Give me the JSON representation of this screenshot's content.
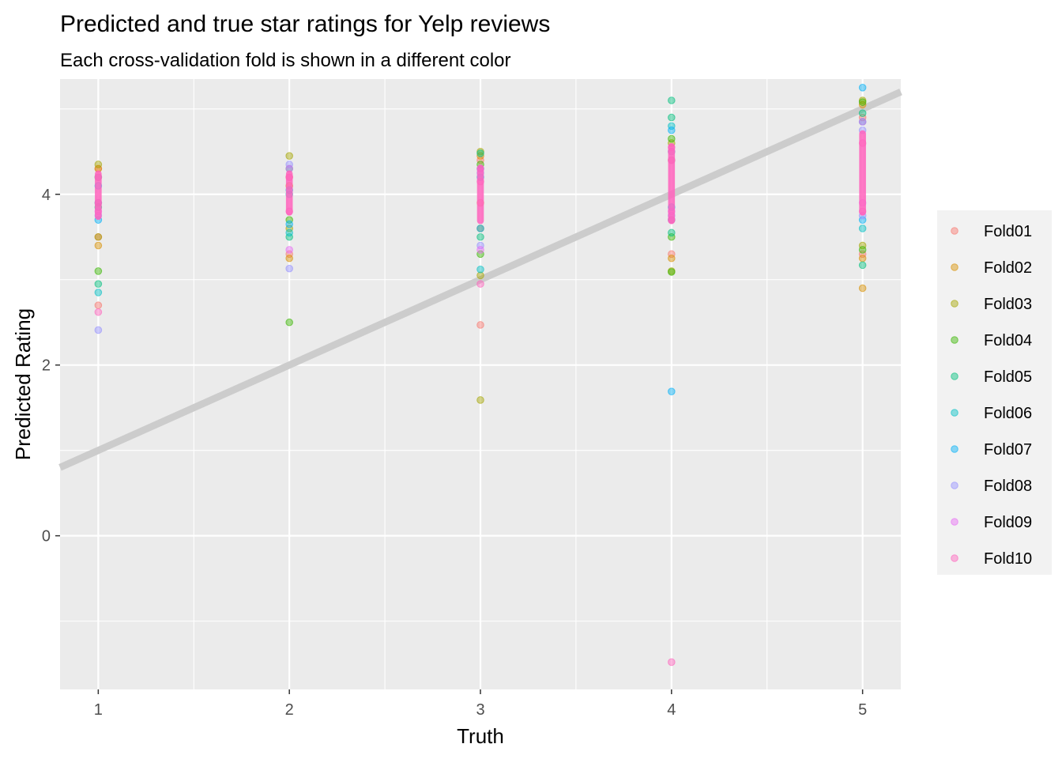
{
  "chart_data": {
    "type": "scatter",
    "title": "Predicted and true star ratings for Yelp reviews",
    "subtitle": "Each cross-validation fold is shown in a different color",
    "xlabel": "Truth",
    "ylabel": "Predicted Rating",
    "xlim": [
      0.8,
      5.2
    ],
    "ylim": [
      -1.8,
      5.35
    ],
    "x_ticks": [
      1,
      2,
      3,
      4,
      5
    ],
    "x_tick_labels": [
      "1",
      "2",
      "3",
      "4",
      "5"
    ],
    "y_ticks": [
      0,
      2,
      4
    ],
    "y_tick_labels": [
      "0",
      "2",
      "4"
    ],
    "grid": true,
    "reference_line": {
      "slope": 1,
      "intercept": 0,
      "color": "#cccccc"
    },
    "legend_position": "right",
    "series": [
      {
        "name": "Fold01",
        "color": "#F8766D",
        "points": [
          [
            1,
            2.7
          ],
          [
            1,
            3.5
          ],
          [
            1,
            4.3
          ],
          [
            2,
            3.3
          ],
          [
            2,
            4.2
          ],
          [
            3,
            2.47
          ],
          [
            3,
            3.9
          ],
          [
            3,
            4.4
          ],
          [
            4,
            3.3
          ],
          [
            4,
            4.5
          ],
          [
            5,
            3.3
          ],
          [
            5,
            4.9
          ]
        ]
      },
      {
        "name": "Fold02",
        "color": "#D89000",
        "points": [
          [
            1,
            3.4
          ],
          [
            1,
            4.3
          ],
          [
            2,
            3.25
          ],
          [
            2,
            4.1
          ],
          [
            3,
            3.6
          ],
          [
            3,
            4.45
          ],
          [
            4,
            3.25
          ],
          [
            4,
            4.4
          ],
          [
            5,
            2.9
          ],
          [
            5,
            3.25
          ],
          [
            5,
            5.05
          ]
        ]
      },
      {
        "name": "Fold03",
        "color": "#A3A500",
        "points": [
          [
            1,
            3.5
          ],
          [
            1,
            4.35
          ],
          [
            2,
            4.45
          ],
          [
            2,
            3.6
          ],
          [
            3,
            1.59
          ],
          [
            3,
            3.05
          ],
          [
            3,
            4.5
          ],
          [
            4,
            3.1
          ],
          [
            4,
            4.6
          ],
          [
            5,
            3.4
          ],
          [
            5,
            5.1
          ]
        ]
      },
      {
        "name": "Fold04",
        "color": "#39B600",
        "points": [
          [
            1,
            3.1
          ],
          [
            1,
            4.2
          ],
          [
            2,
            2.5
          ],
          [
            2,
            3.7
          ],
          [
            3,
            3.3
          ],
          [
            3,
            4.35
          ],
          [
            4,
            3.09
          ],
          [
            4,
            3.5
          ],
          [
            4,
            4.65
          ],
          [
            5,
            3.35
          ],
          [
            5,
            5.08
          ]
        ]
      },
      {
        "name": "Fold05",
        "color": "#00BF7D",
        "points": [
          [
            1,
            2.95
          ],
          [
            1,
            3.85
          ],
          [
            2,
            3.5
          ],
          [
            2,
            4.3
          ],
          [
            3,
            3.5
          ],
          [
            3,
            4.48
          ],
          [
            4,
            3.55
          ],
          [
            4,
            5.1
          ],
          [
            4,
            4.9
          ],
          [
            5,
            3.17
          ],
          [
            5,
            4.95
          ]
        ]
      },
      {
        "name": "Fold06",
        "color": "#00BFC4",
        "points": [
          [
            1,
            2.85
          ],
          [
            1,
            3.9
          ],
          [
            2,
            3.55
          ],
          [
            2,
            4.0
          ],
          [
            3,
            3.12
          ],
          [
            3,
            4.3
          ],
          [
            4,
            3.7
          ],
          [
            4,
            4.8
          ],
          [
            5,
            3.6
          ],
          [
            5,
            4.85
          ]
        ]
      },
      {
        "name": "Fold07",
        "color": "#00B0F6",
        "points": [
          [
            1,
            3.7
          ],
          [
            1,
            4.1
          ],
          [
            2,
            3.65
          ],
          [
            2,
            4.05
          ],
          [
            3,
            3.6
          ],
          [
            3,
            4.2
          ],
          [
            4,
            1.69
          ],
          [
            4,
            3.85
          ],
          [
            4,
            4.75
          ],
          [
            5,
            3.7
          ],
          [
            5,
            5.25
          ]
        ]
      },
      {
        "name": "Fold08",
        "color": "#9590FF",
        "points": [
          [
            1,
            2.41
          ],
          [
            1,
            3.75
          ],
          [
            2,
            3.13
          ],
          [
            2,
            4.35
          ],
          [
            3,
            3.4
          ],
          [
            3,
            4.25
          ],
          [
            4,
            3.75
          ],
          [
            4,
            4.5
          ],
          [
            5,
            3.75
          ],
          [
            5,
            4.75
          ]
        ]
      },
      {
        "name": "Fold09",
        "color": "#E76BF3",
        "points": [
          [
            1,
            3.8
          ],
          [
            1,
            4.2
          ],
          [
            2,
            3.35
          ],
          [
            2,
            4.3
          ],
          [
            3,
            3.35
          ],
          [
            3,
            4.3
          ],
          [
            4,
            3.8
          ],
          [
            4,
            4.4
          ],
          [
            5,
            3.9
          ],
          [
            5,
            4.85
          ]
        ]
      },
      {
        "name": "Fold10",
        "color": "#FF62BC",
        "points": [
          [
            1,
            2.62
          ],
          [
            1,
            3.9
          ],
          [
            2,
            3.8
          ],
          [
            2,
            4.2
          ],
          [
            3,
            2.95
          ],
          [
            3,
            4.15
          ],
          [
            4,
            -1.48
          ],
          [
            4,
            3.7
          ],
          [
            4,
            4.55
          ],
          [
            5,
            3.8
          ],
          [
            5,
            4.6
          ]
        ]
      }
    ],
    "dense_bands": [
      {
        "x": 1,
        "y_from": 3.7,
        "y_to": 4.28,
        "color": "#FF62BC"
      },
      {
        "x": 2,
        "y_from": 3.75,
        "y_to": 4.28,
        "color": "#FF62BC"
      },
      {
        "x": 3,
        "y_from": 3.65,
        "y_to": 4.35,
        "color": "#FF62BC"
      },
      {
        "x": 4,
        "y_from": 3.65,
        "y_to": 4.6,
        "color": "#FF62BC"
      },
      {
        "x": 5,
        "y_from": 3.75,
        "y_to": 4.75,
        "color": "#FF62BC"
      }
    ]
  }
}
